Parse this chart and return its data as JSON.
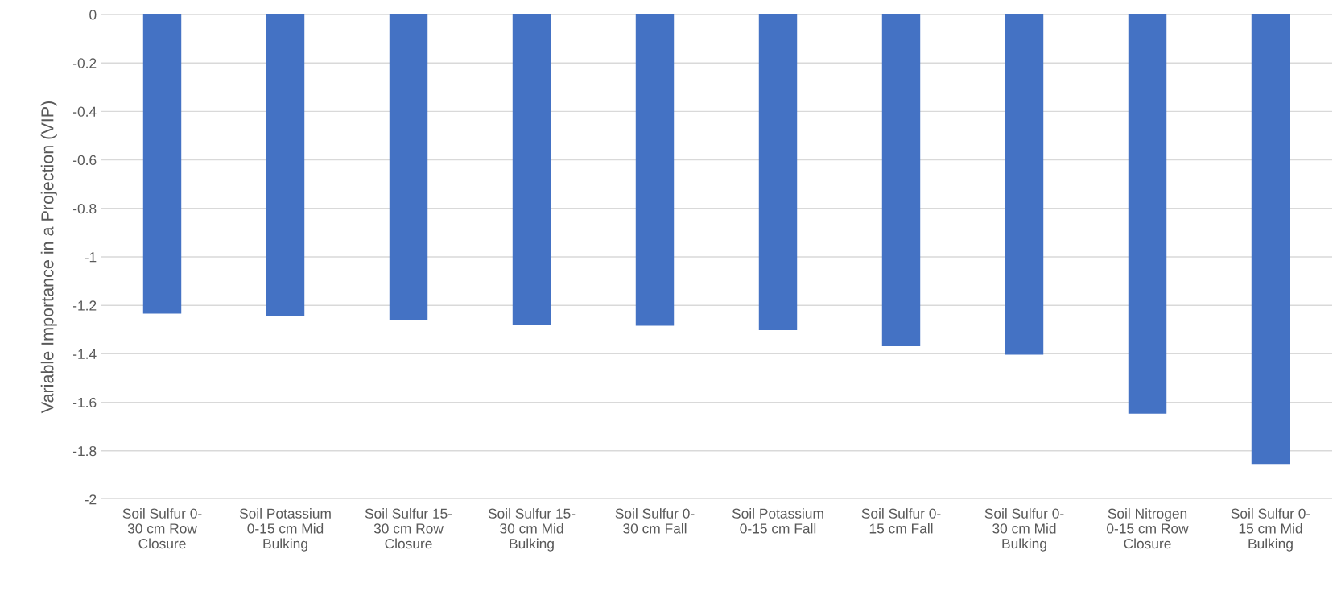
{
  "chart_data": {
    "type": "bar",
    "ylabel": "Variable Importance in a Projection (VIP)",
    "categories": [
      "Soil Sulfur 0-30 cm Row Closure",
      "Soil Potassium 0-15 cm Mid Bulking",
      "Soil Sulfur 15-30 cm Row Closure",
      "Soil Sulfur 15-30 cm Mid Bulking",
      "Soil Sulfur 0-30 cm Fall",
      "Soil Potassium 0-15 cm Fall",
      "Soil Sulfur 0-15 cm Fall",
      "Soil Sulfur 0-30 cm Mid Bulking",
      "Soil Nitrogen 0-15 cm Row Closure",
      "Soil Sulfur 0-15 cm Mid Bulking"
    ],
    "values": [
      -1.234,
      -1.245,
      -1.259,
      -1.28,
      -1.284,
      -1.302,
      -1.369,
      -1.404,
      -1.647,
      -1.855
    ],
    "color": "#4472c4",
    "ylim": [
      -2,
      0
    ],
    "yticks": [
      -2,
      -1.8,
      -1.6,
      -1.4,
      -1.2,
      -1,
      -0.8,
      -0.6,
      -0.4,
      -0.2,
      0
    ],
    "grid": "y"
  }
}
